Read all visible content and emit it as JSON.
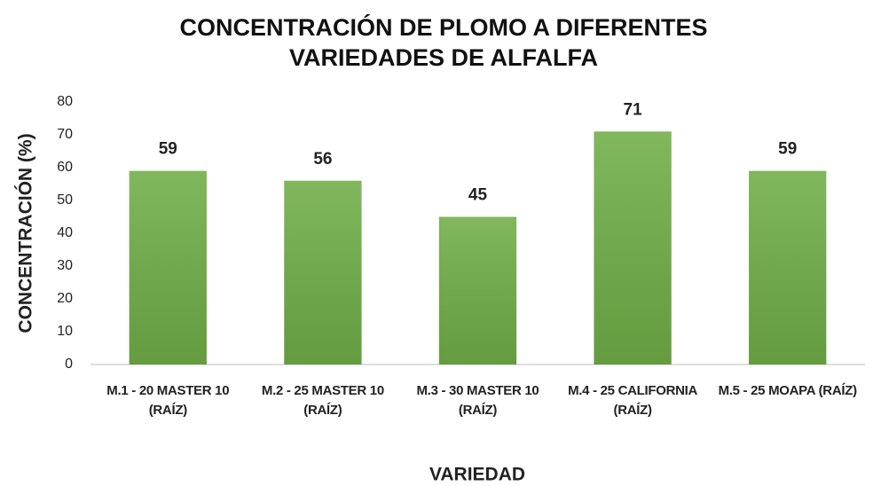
{
  "chart_data": {
    "type": "bar",
    "title": "CONCENTRACIÓN DE PLOMO A DIFERENTES VARIEDADES DE ALFALFA",
    "x_label": "VARIEDAD",
    "y_label": "CONCENTRACIÓN (%)",
    "categories": [
      "M.1 - 20 MASTER 10 (RAÍZ)",
      "M.2 - 25 MASTER 10 (RAÍZ)",
      "M.3 - 30 MASTER 10 (RAÍZ)",
      "M.4 - 25 CALIFORNIA (RAÍZ)",
      "M.5 - 25 MOAPA (RAÍZ)"
    ],
    "values": [
      59,
      56,
      45,
      71,
      59
    ],
    "color": "#70ad47",
    "ylim": [
      0,
      80
    ],
    "yticks": [
      0,
      10,
      20,
      30,
      40,
      50,
      60,
      70,
      80
    ],
    "grid": false
  }
}
